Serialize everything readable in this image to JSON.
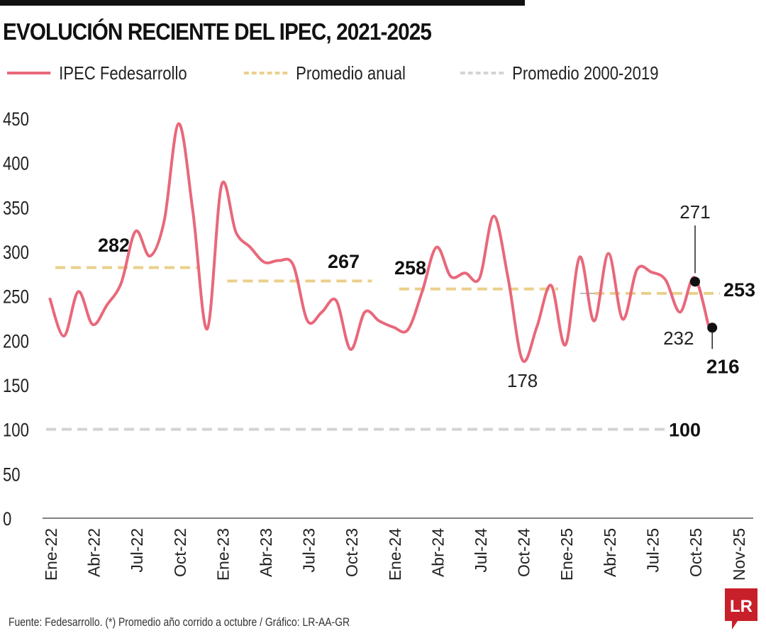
{
  "title": "EVOLUCIÓN RECIENTE DEL IPEC, 2021-2025",
  "legend": [
    {
      "label": "IPEC Fedesarrollo",
      "color": "#e8687a",
      "style": "solid"
    },
    {
      "label": "Promedio anual",
      "color": "#e9cf8a",
      "style": "dashed"
    },
    {
      "label": "Promedio 2000-2019",
      "color": "#d4d4d4",
      "style": "dashed"
    }
  ],
  "source": "Fuente: Fedesarrollo. (*) Promedio año corrido a octubre / Gráfico: LR-AA-GR",
  "logo": "LR",
  "chart_data": {
    "type": "line",
    "title": "EVOLUCIÓN RECIENTE DEL IPEC, 2021-2025",
    "ylim": [
      0,
      450
    ],
    "yticks": [
      0,
      50,
      100,
      150,
      200,
      250,
      300,
      350,
      400,
      450
    ],
    "xtick_labels": [
      "Ene-22",
      "Abr-22",
      "Jul-22",
      "Oct-22",
      "Ene-23",
      "Abr-23",
      "Jul-23",
      "Oct-23",
      "Ene-24",
      "Abr-24",
      "Jul-24",
      "Oct-24",
      "Ene-25",
      "Abr-25",
      "Jul-25",
      "Oct-25",
      "Nov-25"
    ],
    "xtick_month_index": [
      0,
      3,
      6,
      9,
      12,
      15,
      18,
      21,
      24,
      27,
      30,
      33,
      36,
      39,
      42,
      45,
      46
    ],
    "grid": false,
    "legend_position": "top",
    "series": [
      {
        "name": "IPEC Fedesarrollo",
        "color": "#e8687a",
        "values": [
          248,
          205,
          255,
          218,
          240,
          265,
          323,
          295,
          335,
          444,
          345,
          213,
          375,
          322,
          305,
          288,
          290,
          285,
          222,
          232,
          245,
          190,
          232,
          222,
          215,
          212,
          255,
          305,
          272,
          276,
          270,
          340,
          270,
          178,
          215,
          262,
          195,
          294,
          222,
          298,
          224,
          280,
          277,
          268,
          232,
          271,
          216
        ]
      }
    ],
    "annual_averages": [
      {
        "year": "2022",
        "value": 282,
        "label": "282",
        "start_index": 0,
        "end_index": 10
      },
      {
        "year": "2023",
        "value": 267,
        "label": "267",
        "start_index": 12,
        "end_index": 22
      },
      {
        "year": "2024",
        "value": 258,
        "label": "258",
        "start_index": 24,
        "end_index": 35
      },
      {
        "year": "2025",
        "value": 253,
        "label": "253",
        "start_index": 38,
        "end_index": 46
      }
    ],
    "long_run_average": {
      "value": 100,
      "label": "100"
    },
    "annotations": [
      {
        "index": 33,
        "label": "178",
        "bold": false,
        "marker": false
      },
      {
        "index": 44,
        "label": "232",
        "bold": false,
        "marker": false
      },
      {
        "index": 45,
        "label": "271",
        "bold": false,
        "marker": true
      },
      {
        "index": 46,
        "label": "216",
        "bold": true,
        "marker": true
      }
    ]
  }
}
